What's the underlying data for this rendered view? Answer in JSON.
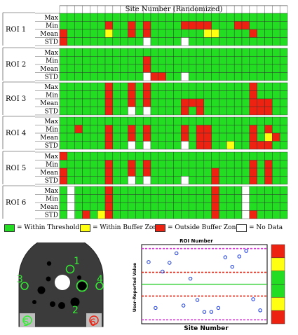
{
  "colors": {
    "G": "#22dd22",
    "Y": "#ffff11",
    "R": "#ee2211",
    "W": "#ffffff",
    "grid": "#333333",
    "pink": "#dd33dd",
    "chartgreen": "#22cc22",
    "dot": "#1133dd"
  },
  "chart_data": [
    {
      "type": "heatmap",
      "title": "Site Number (Randomized)",
      "stats": [
        "Max",
        "Min",
        "Mean",
        "STD"
      ],
      "rois": [
        {
          "label": "ROI 1",
          "rows": [
            "GGGGGGGGGGGGGGGGGGGGGGGGGGGGGG",
            "GGGGGGRGGRGRGGGGRRRRGGGRRGGGGG",
            "RGGGGGYGGRGRGGGGGGGYYGGGGRGGGG",
            "RGGGGGGGGGGWGGGGWGGGGGGGGGGGGG"
          ]
        },
        {
          "label": "ROI 2",
          "rows": [
            "GGGGGGGGGGGGGGGGGGGGGGGGGGGGGG",
            "GGGGGGGGGGGRGGGGGGGGGGGGGGGGGG",
            "GGGGGGGGGGGRGGGGGGGGGGGGGGGGGG",
            "GGGGGGGGGGGWRRGGWGGGGGGGGGGGGG"
          ]
        },
        {
          "label": "ROI 3",
          "rows": [
            "GGGGGGRGGRGRGGGGGGGGGGGGGRGGGG",
            "GGGGGGRGGRGRGGGGGGGGGGGGGRGGGG",
            "GGGGGGRGGRGRGGGGRRRGGGGGGRRRGG",
            "GGGGGGRGGWGWGGGGRGRGGGGGGRRRGG"
          ]
        },
        {
          "label": "ROI 4",
          "rows": [
            "GGGGGGGGGGGGGGGGGGGGGGGGGGGGGG",
            "GGRGGGRGGRGRGGGGRGRRGGGGGRGRGG",
            "GGGGGGRGGRGRGGGGRGRRGGGGGRGYRG",
            "GGGGGGRGGWGWGGGGWGRRGGYGGRRRGG"
          ]
        },
        {
          "label": "ROI 5",
          "rows": [
            "RGGGGGGGGGGGGGGGGGGGGGGGGGGGGG",
            "GGGGGGRGGRGRGGGGGGGGGGGGGRGRGG",
            "RGGGGGRGGRGRGGGGGGGGRGGGGRGRGG",
            "RGGGGGRGGWGWGGGGWGGGRGGGGRGRGG"
          ]
        },
        {
          "label": "ROI 6",
          "rows": [
            "GWGGGGRGGGGGGGGGGGGGRGGGWGGGGG",
            "GWGGGGRGGGGGGGGGGGGGRGGGWGGGGG",
            "GWGGGGRGGGGGGGGGGGGGRGGGWGGGGG",
            "GWGRGYRGGGGGGGGGGGGGRGGGWRGGGG"
          ]
        }
      ]
    },
    {
      "type": "scatter",
      "title": "ROI Number",
      "xlabel": "Site Number",
      "ylabel": "User-Reported Value",
      "points": [
        {
          "x": 1,
          "y": 0.78
        },
        {
          "x": 2,
          "y": 0.2
        },
        {
          "x": 3,
          "y": 0.66
        },
        {
          "x": 4,
          "y": 0.77
        },
        {
          "x": 5,
          "y": 0.89
        },
        {
          "x": 6,
          "y": 0.23
        },
        {
          "x": 7,
          "y": 0.57
        },
        {
          "x": 8,
          "y": 0.3
        },
        {
          "x": 9,
          "y": 0.15
        },
        {
          "x": 10,
          "y": 0.15
        },
        {
          "x": 11,
          "y": 0.2
        },
        {
          "x": 12,
          "y": 0.84
        },
        {
          "x": 13,
          "y": 0.72
        },
        {
          "x": 14,
          "y": 0.85
        },
        {
          "x": 15,
          "y": 0.92
        },
        {
          "x": 16,
          "y": 0.31
        },
        {
          "x": 17,
          "y": 0.17
        }
      ],
      "center": 0.5,
      "buffer_lines": [
        0.35,
        0.65
      ],
      "threshold_lines": [
        0.05,
        0.95
      ],
      "side_bar": [
        "R",
        "Y",
        "G",
        "G",
        "Y",
        "R"
      ]
    }
  ],
  "legend": [
    {
      "color": "G",
      "text": "= Within Threshold"
    },
    {
      "color": "Y",
      "text": "= Within Buffer Zone"
    },
    {
      "color": "R",
      "text": "= Outside Buffer Zone"
    },
    {
      "color": "W",
      "text": "= No Data"
    }
  ],
  "phantom": {
    "labels": [
      "1",
      "2",
      "3",
      "4",
      "5",
      "6"
    ]
  }
}
